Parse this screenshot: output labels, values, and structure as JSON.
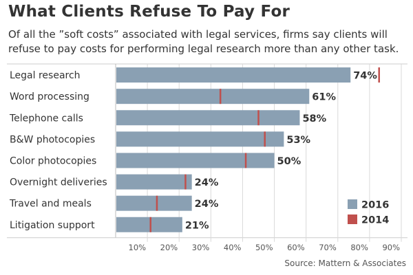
{
  "header": {
    "title": "What Clients Refuse To Pay For",
    "subtitle": "Of all the ”soft costs” associated with legal services, firms say clients will refuse to pay costs for performing legal research more than any other task."
  },
  "source": "Source: Mattern & Associates",
  "colors": {
    "bar_2016": "#8aa0b3",
    "marker_2014": "#c0504d",
    "grid": "#d9d9d9",
    "text": "#333333"
  },
  "chart_data": {
    "type": "bar",
    "orientation": "horizontal",
    "categories": [
      "Legal research",
      "Word processing",
      "Telephone calls",
      "B&W photocopies",
      "Color photocopies",
      "Overnight deliveries",
      "Travel and meals",
      "Litigation support"
    ],
    "series": [
      {
        "name": "2016",
        "values": [
          74,
          61,
          58,
          53,
          50,
          24,
          24,
          21
        ],
        "style": "bar"
      },
      {
        "name": "2014",
        "values": [
          83,
          33,
          45,
          47,
          41,
          22,
          13,
          11
        ],
        "style": "marker"
      }
    ],
    "value_labels": [
      "74%",
      "61%",
      "58%",
      "53%",
      "50%",
      "24%",
      "24%",
      "21%"
    ],
    "xlim": [
      0,
      90
    ],
    "xticks": [
      10,
      20,
      30,
      40,
      50,
      60,
      70,
      80,
      90
    ],
    "xtick_labels": [
      "10%",
      "20%",
      "30%",
      "40%",
      "50%",
      "60%",
      "70%",
      "80%",
      "90%"
    ],
    "grid": true,
    "legend": {
      "placement": "bottom-right",
      "entries": [
        {
          "label": "2016",
          "color": "#8aa0b3"
        },
        {
          "label": "2014",
          "color": "#c0504d"
        }
      ]
    }
  }
}
